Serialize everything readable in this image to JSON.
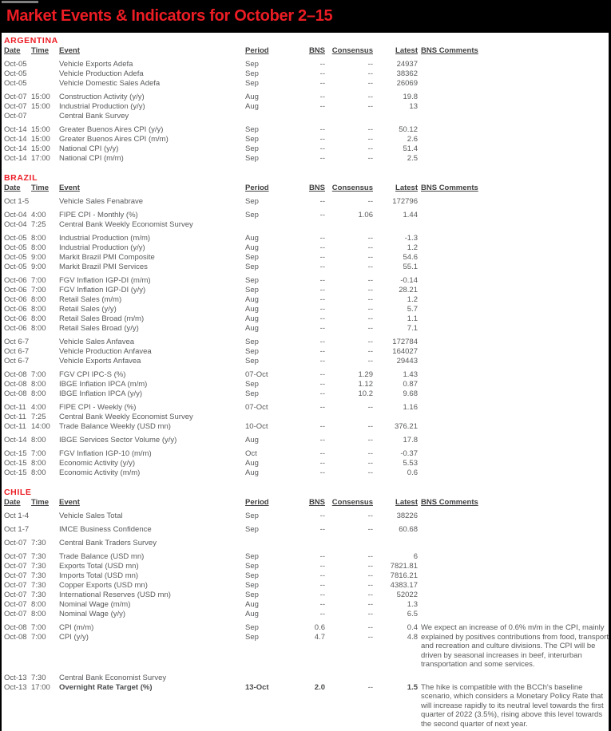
{
  "page": {
    "title": "Market Events & Indicators for October 2–15",
    "accent_red": "#EC1C24",
    "body_text_color": "#58595B",
    "background_color": "#000000"
  },
  "table": {
    "headers": {
      "date": "Date",
      "time": "Time",
      "event": "Event",
      "period": "Period",
      "bns": "BNS",
      "consensus": "Consensus",
      "latest": "Latest",
      "comments": "BNS Comments"
    }
  },
  "sections": [
    {
      "name": "ARGENTINA",
      "groups": [
        {
          "rows": [
            {
              "date": "Oct-05",
              "time": "",
              "event": "Vehicle Exports Adefa",
              "period": "Sep",
              "bns": "--",
              "consensus": "--",
              "latest": "24937"
            },
            {
              "date": "Oct-05",
              "time": "",
              "event": "Vehicle Production Adefa",
              "period": "Sep",
              "bns": "--",
              "consensus": "--",
              "latest": "38362"
            },
            {
              "date": "Oct-05",
              "time": "",
              "event": "Vehicle Domestic Sales Adefa",
              "period": "Sep",
              "bns": "--",
              "consensus": "--",
              "latest": "26069"
            }
          ]
        },
        {
          "rows": [
            {
              "date": "Oct-07",
              "time": "15:00",
              "event": "Construction Activity (y/y)",
              "period": "Aug",
              "bns": "--",
              "consensus": "--",
              "latest": "19.8"
            },
            {
              "date": "Oct-07",
              "time": "15:00",
              "event": "Industrial Production (y/y)",
              "period": "Aug",
              "bns": "--",
              "consensus": "--",
              "latest": "13"
            },
            {
              "date": "Oct-07",
              "time": "",
              "event": "Central Bank Survey",
              "period": "",
              "bns": "",
              "consensus": "",
              "latest": ""
            }
          ]
        },
        {
          "rows": [
            {
              "date": "Oct-14",
              "time": "15:00",
              "event": "Greater Buenos Aires CPI (y/y)",
              "period": "Sep",
              "bns": "--",
              "consensus": "--",
              "latest": "50.12"
            },
            {
              "date": "Oct-14",
              "time": "15:00",
              "event": "Greater Buenos Aires CPI (m/m)",
              "period": "Sep",
              "bns": "--",
              "consensus": "--",
              "latest": "2.6"
            },
            {
              "date": "Oct-14",
              "time": "15:00",
              "event": "National CPI (y/y)",
              "period": "Sep",
              "bns": "--",
              "consensus": "--",
              "latest": "51.4"
            },
            {
              "date": "Oct-14",
              "time": "17:00",
              "event": "National CPI (m/m)",
              "period": "Sep",
              "bns": "--",
              "consensus": "--",
              "latest": "2.5"
            }
          ]
        }
      ]
    },
    {
      "name": "BRAZIL",
      "groups": [
        {
          "rows": [
            {
              "date": "Oct 1-5",
              "time": "",
              "event": "Vehicle Sales Fenabrave",
              "period": "Sep",
              "bns": "--",
              "consensus": "--",
              "latest": "172796"
            }
          ]
        },
        {
          "rows": [
            {
              "date": "Oct-04",
              "time": "4:00",
              "event": "FIPE CPI - Monthly (%)",
              "period": "Sep",
              "bns": "--",
              "consensus": "1.06",
              "latest": "1.44"
            },
            {
              "date": "Oct-04",
              "time": "7:25",
              "event": "Central Bank Weekly Economist Survey",
              "period": "",
              "bns": "",
              "consensus": "",
              "latest": ""
            }
          ]
        },
        {
          "rows": [
            {
              "date": "Oct-05",
              "time": "8:00",
              "event": "Industrial Production (m/m)",
              "period": "Aug",
              "bns": "--",
              "consensus": "--",
              "latest": "-1.3"
            },
            {
              "date": "Oct-05",
              "time": "8:00",
              "event": "Industrial Production (y/y)",
              "period": "Aug",
              "bns": "--",
              "consensus": "--",
              "latest": "1.2"
            },
            {
              "date": "Oct-05",
              "time": "9:00",
              "event": "Markit Brazil PMI Composite",
              "period": "Sep",
              "bns": "--",
              "consensus": "--",
              "latest": "54.6"
            },
            {
              "date": "Oct-05",
              "time": "9:00",
              "event": "Markit Brazil PMI Services",
              "period": "Sep",
              "bns": "--",
              "consensus": "--",
              "latest": "55.1"
            }
          ]
        },
        {
          "rows": [
            {
              "date": "Oct-06",
              "time": "7:00",
              "event": "FGV Inflation IGP-DI (m/m)",
              "period": "Sep",
              "bns": "--",
              "consensus": "--",
              "latest": "-0.14"
            },
            {
              "date": "Oct-06",
              "time": "7:00",
              "event": "FGV Inflation IGP-DI (y/y)",
              "period": "Sep",
              "bns": "--",
              "consensus": "--",
              "latest": "28.21"
            },
            {
              "date": "Oct-06",
              "time": "8:00",
              "event": "Retail Sales (m/m)",
              "period": "Aug",
              "bns": "--",
              "consensus": "--",
              "latest": "1.2"
            },
            {
              "date": "Oct-06",
              "time": "8:00",
              "event": "Retail Sales (y/y)",
              "period": "Aug",
              "bns": "--",
              "consensus": "--",
              "latest": "5.7"
            },
            {
              "date": "Oct-06",
              "time": "8:00",
              "event": "Retail Sales Broad (m/m)",
              "period": "Aug",
              "bns": "--",
              "consensus": "--",
              "latest": "1.1"
            },
            {
              "date": "Oct-06",
              "time": "8:00",
              "event": "Retail Sales Broad (y/y)",
              "period": "Aug",
              "bns": "--",
              "consensus": "--",
              "latest": "7.1"
            }
          ]
        },
        {
          "rows": [
            {
              "date": "Oct 6-7",
              "time": "",
              "event": "Vehicle Sales Anfavea",
              "period": "Sep",
              "bns": "--",
              "consensus": "--",
              "latest": "172784"
            },
            {
              "date": "Oct 6-7",
              "time": "",
              "event": "Vehicle Production Anfavea",
              "period": "Sep",
              "bns": "--",
              "consensus": "--",
              "latest": "164027"
            },
            {
              "date": "Oct 6-7",
              "time": "",
              "event": "Vehicle Exports Anfavea",
              "period": "Sep",
              "bns": "--",
              "consensus": "--",
              "latest": "29443"
            }
          ]
        },
        {
          "rows": [
            {
              "date": "Oct-08",
              "time": "7:00",
              "event": "FGV CPI IPC-S (%)",
              "period": "07-Oct",
              "bns": "--",
              "consensus": "1.29",
              "latest": "1.43"
            },
            {
              "date": "Oct-08",
              "time": "8:00",
              "event": "IBGE Inflation IPCA (m/m)",
              "period": "Sep",
              "bns": "--",
              "consensus": "1.12",
              "latest": "0.87"
            },
            {
              "date": "Oct-08",
              "time": "8:00",
              "event": "IBGE Inflation IPCA (y/y)",
              "period": "Sep",
              "bns": "--",
              "consensus": "10.2",
              "latest": "9.68"
            }
          ]
        },
        {
          "rows": [
            {
              "date": "Oct-11",
              "time": "4:00",
              "event": "FIPE CPI - Weekly (%)",
              "period": "07-Oct",
              "bns": "--",
              "consensus": "--",
              "latest": "1.16"
            },
            {
              "date": "Oct-11",
              "time": "7:25",
              "event": "Central Bank Weekly Economist Survey",
              "period": "",
              "bns": "",
              "consensus": "",
              "latest": ""
            },
            {
              "date": "Oct-11",
              "time": "14:00",
              "event": "Trade Balance Weekly (USD mn)",
              "period": "10-Oct",
              "bns": "--",
              "consensus": "--",
              "latest": "376.21"
            }
          ]
        },
        {
          "rows": [
            {
              "date": "Oct-14",
              "time": "8:00",
              "event": "IBGE Services Sector Volume (y/y)",
              "period": "Aug",
              "bns": "--",
              "consensus": "--",
              "latest": "17.8"
            }
          ]
        },
        {
          "rows": [
            {
              "date": "Oct-15",
              "time": "7:00",
              "event": "FGV Inflation IGP-10 (m/m)",
              "period": "Oct",
              "bns": "--",
              "consensus": "--",
              "latest": "-0.37"
            },
            {
              "date": "Oct-15",
              "time": "8:00",
              "event": "Economic Activity (y/y)",
              "period": "Aug",
              "bns": "--",
              "consensus": "--",
              "latest": "5.53"
            },
            {
              "date": "Oct-15",
              "time": "8:00",
              "event": "Economic Activity (m/m)",
              "period": "Aug",
              "bns": "--",
              "consensus": "--",
              "latest": "0.6"
            }
          ]
        }
      ]
    },
    {
      "name": "CHILE",
      "groups": [
        {
          "rows": [
            {
              "date": "Oct 1-4",
              "time": "",
              "event": "Vehicle Sales Total",
              "period": "Sep",
              "bns": "--",
              "consensus": "--",
              "latest": "38226"
            }
          ]
        },
        {
          "rows": [
            {
              "date": "Oct 1-7",
              "time": "",
              "event": "IMCE Business Confidence",
              "period": "Sep",
              "bns": "--",
              "consensus": "--",
              "latest": "60.68"
            }
          ]
        },
        {
          "rows": [
            {
              "date": "Oct-07",
              "time": "7:30",
              "event": "Central Bank Traders Survey",
              "period": "",
              "bns": "",
              "consensus": "",
              "latest": ""
            }
          ]
        },
        {
          "rows": [
            {
              "date": "Oct-07",
              "time": "7:30",
              "event": "Trade Balance (USD mn)",
              "period": "Sep",
              "bns": "--",
              "consensus": "--",
              "latest": "6"
            },
            {
              "date": "Oct-07",
              "time": "7:30",
              "event": "Exports Total (USD mn)",
              "period": "Sep",
              "bns": "--",
              "consensus": "--",
              "latest": "7821.81"
            },
            {
              "date": "Oct-07",
              "time": "7:30",
              "event": "Imports Total (USD mn)",
              "period": "Sep",
              "bns": "--",
              "consensus": "--",
              "latest": "7816.21"
            },
            {
              "date": "Oct-07",
              "time": "7:30",
              "event": "Copper Exports (USD mn)",
              "period": "Sep",
              "bns": "--",
              "consensus": "--",
              "latest": "4383.17"
            },
            {
              "date": "Oct-07",
              "time": "7:30",
              "event": "International Reserves (USD mn)",
              "period": "Sep",
              "bns": "--",
              "consensus": "--",
              "latest": "52022"
            },
            {
              "date": "Oct-07",
              "time": "8:00",
              "event": "Nominal Wage (m/m)",
              "period": "Aug",
              "bns": "--",
              "consensus": "--",
              "latest": "1.3"
            },
            {
              "date": "Oct-07",
              "time": "8:00",
              "event": "Nominal Wage (y/y)",
              "period": "Aug",
              "bns": "--",
              "consensus": "--",
              "latest": "6.5"
            }
          ]
        },
        {
          "rows": [
            {
              "date": "Oct-08",
              "time": "7:00",
              "event": "CPI (m/m)",
              "period": "Sep",
              "bns": "0.6",
              "consensus": "--",
              "latest": "0.4"
            },
            {
              "date": "Oct-08",
              "time": "7:00",
              "event": "CPI (y/y)",
              "period": "Sep",
              "bns": "4.7",
              "consensus": "--",
              "latest": "4.8"
            }
          ],
          "comment": "We expect an increase of 0.6% m/m in the CPI, mainly explained by positives contributions from food, transport and recreation and culture divisions. The CPI will be driven by seasonal increases in beef, interurban transportation and some services.",
          "comment_offset": 0
        },
        {
          "rows": [
            {
              "date": "Oct-13",
              "time": "7:30",
              "event": "Central Bank Economist Survey",
              "period": "",
              "bns": "",
              "consensus": "",
              "latest": ""
            },
            {
              "date": "Oct-13",
              "time": "17:00",
              "event": "Overnight Rate Target (%)",
              "period": "13-Oct",
              "bns": "2.0",
              "consensus": "--",
              "latest": "1.5",
              "bold": true
            }
          ],
          "comment": "The hike is compatible with the BCCh's baseline scenario, which considers a Monetary Policy Rate that will increase rapidly to its neutral level towards the first quarter of 2022 (3.5%), rising above this level towards the second quarter of next year.",
          "comment_offset": 1
        }
      ]
    }
  ]
}
